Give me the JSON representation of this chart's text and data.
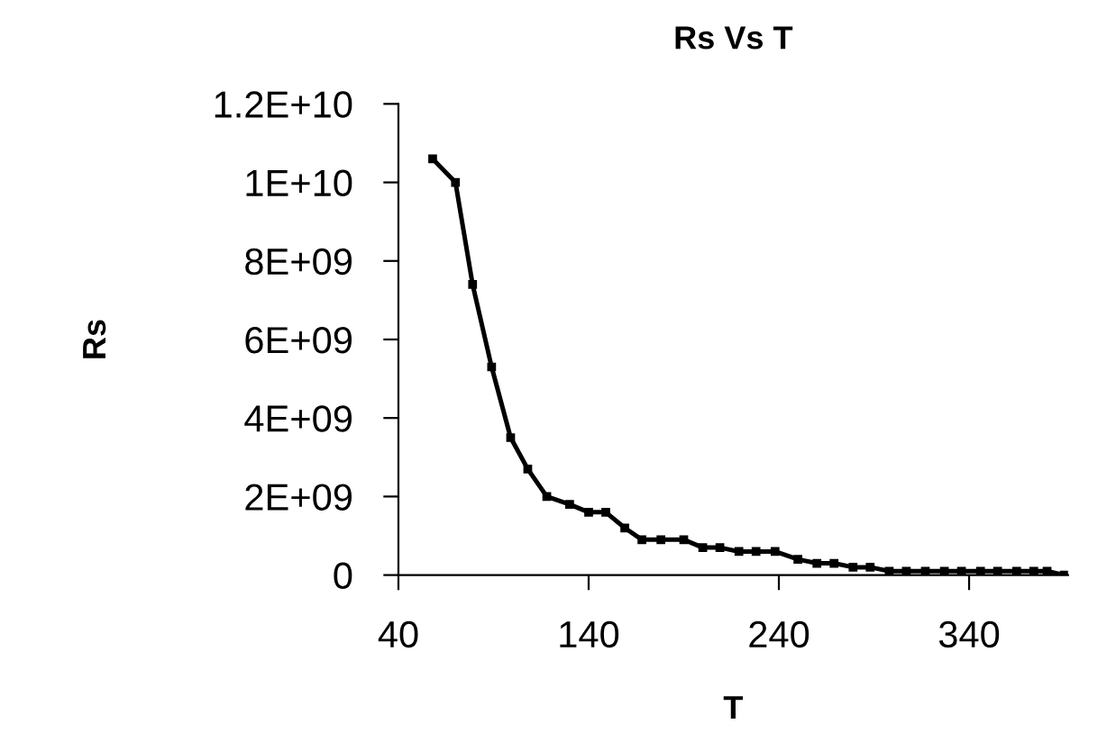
{
  "chart_data": {
    "type": "line",
    "title": "Rs Vs T",
    "xlabel": "T",
    "ylabel": "Rs",
    "x": [
      58,
      70,
      79,
      89,
      99,
      108,
      118,
      130,
      140,
      149,
      159,
      168,
      178,
      190,
      200,
      209,
      219,
      228,
      238,
      250,
      260,
      269,
      279,
      288,
      298,
      307,
      317,
      327,
      336,
      346,
      355,
      365,
      374,
      381,
      390
    ],
    "series": [
      {
        "color": "#000000",
        "values": [
          10600000000.0,
          10000000000.0,
          7400000000.0,
          5300000000.0,
          3500000000.0,
          2700000000.0,
          2000000000.0,
          1800000000.0,
          1600000000.0,
          1600000000.0,
          1200000000.0,
          900000000.0,
          900000000.0,
          900000000.0,
          700000000.0,
          700000000.0,
          600000000.0,
          600000000.0,
          600000000.0,
          400000000.0,
          300000000.0,
          300000000.0,
          200000000.0,
          200000000.0,
          100000000.0,
          100000000.0,
          100000000.0,
          100000000.0,
          100000000.0,
          100000000.0,
          100000000.0,
          100000000.0,
          100000000.0,
          100000000.0,
          0
        ]
      }
    ],
    "xlim": [
      40,
      392
    ],
    "xticks": [
      40,
      140,
      240,
      340
    ],
    "ylim": [
      0,
      12000000000.0
    ],
    "yticks": [
      {
        "value": 0,
        "label": "0"
      },
      {
        "value": 2000000000.0,
        "label": "2E+09"
      },
      {
        "value": 4000000000.0,
        "label": "4E+09"
      },
      {
        "value": 6000000000.0,
        "label": "6E+09"
      },
      {
        "value": 8000000000.0,
        "label": "8E+09"
      },
      {
        "value": 10000000000.0,
        "label": "1E+10"
      },
      {
        "value": 12000000000.0,
        "label": "1.2E+10"
      }
    ],
    "marker": "square",
    "line_style": "solid",
    "grid": false,
    "legend": false
  }
}
